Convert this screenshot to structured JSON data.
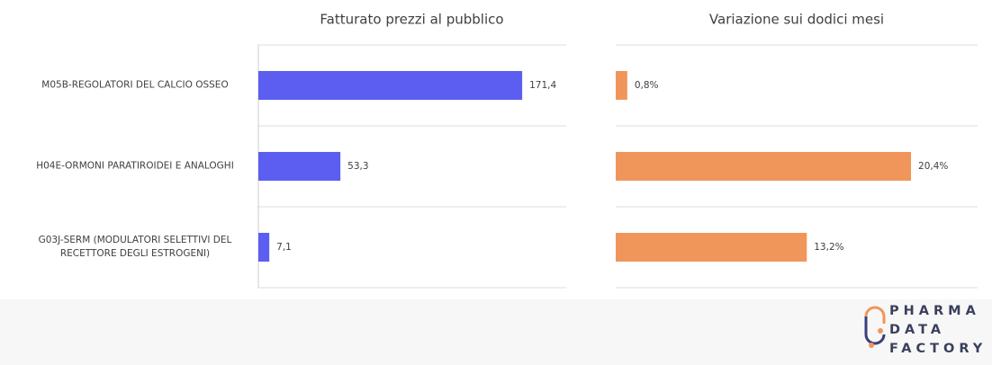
{
  "chart_data": [
    {
      "type": "hbar",
      "title": "Fatturato prezzi al pubblico",
      "categories": [
        "M05B-REGOLATORI DEL CALCIO OSSEO",
        "H04E-ORMONI PARATIROIDEI E ANALOGHI",
        "G03J-SERM (MODULATORI SELETTIVI DEL RECETTORE DEGLI ESTROGENI)"
      ],
      "values": [
        171.4,
        53.3,
        7.1
      ],
      "value_labels": [
        "171,4",
        "53,3",
        "7,1"
      ],
      "color": "#5b5ef0",
      "xlim": [
        0,
        200
      ]
    },
    {
      "type": "hbar",
      "title": "Variazione sui dodici mesi",
      "categories": [
        null,
        null,
        null
      ],
      "values": [
        0.8,
        20.4,
        13.2
      ],
      "value_labels": [
        "0,8%",
        "20,4%",
        "13,2%"
      ],
      "color": "#f0965a",
      "xlim": [
        0,
        25
      ]
    }
  ],
  "logo": [
    "PHARMA",
    "DATA",
    "FACTORY"
  ]
}
